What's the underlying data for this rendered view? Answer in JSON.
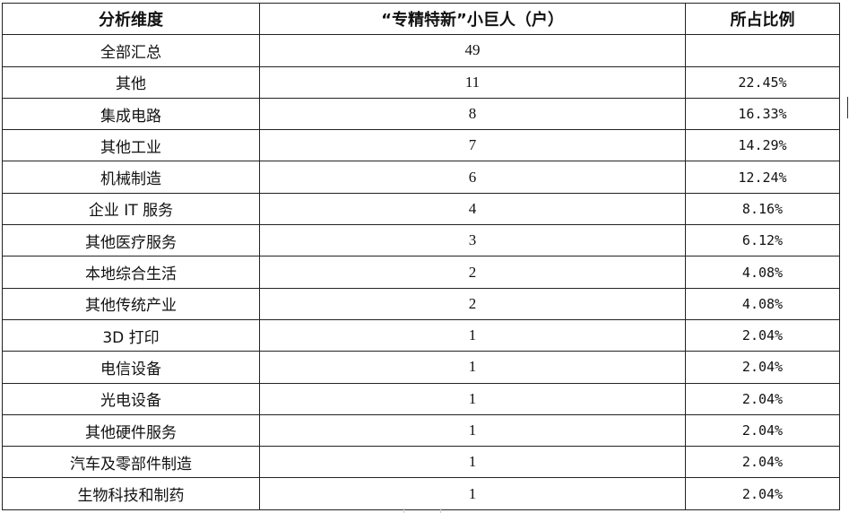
{
  "headers": {
    "dimension": "分析维度",
    "count": "“专精特新”小巨人（户）",
    "ratio": "所占比例"
  },
  "rows": [
    {
      "dimension": "全部汇总",
      "count": "49",
      "ratio": ""
    },
    {
      "dimension": "其他",
      "count": "11",
      "ratio": "22.45%"
    },
    {
      "dimension": "集成电路",
      "count": "8",
      "ratio": "16.33%"
    },
    {
      "dimension": "其他工业",
      "count": "7",
      "ratio": "14.29%"
    },
    {
      "dimension": "机械制造",
      "count": "6",
      "ratio": "12.24%"
    },
    {
      "dimension": "企业 IT 服务",
      "count": "4",
      "ratio": "8.16%"
    },
    {
      "dimension": "其他医疗服务",
      "count": "3",
      "ratio": "6.12%"
    },
    {
      "dimension": "本地综合生活",
      "count": "2",
      "ratio": "4.08%"
    },
    {
      "dimension": "其他传统产业",
      "count": "2",
      "ratio": "4.08%"
    },
    {
      "dimension": "3D 打印",
      "count": "1",
      "ratio": "2.04%"
    },
    {
      "dimension": "电信设备",
      "count": "1",
      "ratio": "2.04%"
    },
    {
      "dimension": "光电设备",
      "count": "1",
      "ratio": "2.04%"
    },
    {
      "dimension": "其他硬件服务",
      "count": "1",
      "ratio": "2.04%"
    },
    {
      "dimension": "汽车及零部件制造",
      "count": "1",
      "ratio": "2.04%"
    },
    {
      "dimension": "生物科技和制药",
      "count": "1",
      "ratio": "2.04%"
    }
  ]
}
